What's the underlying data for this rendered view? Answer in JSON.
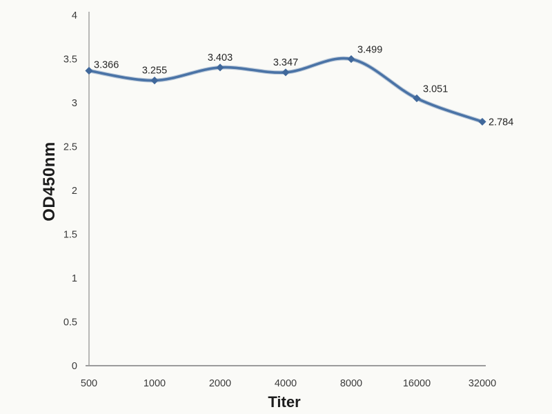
{
  "figure": {
    "background": "#fafaf7"
  },
  "chart_data": {
    "type": "line",
    "title": "",
    "xlabel": "Titer",
    "ylabel": "OD450nm",
    "categories": [
      "500",
      "1000",
      "2000",
      "4000",
      "8000",
      "16000",
      "32000"
    ],
    "values": [
      3.366,
      3.255,
      3.403,
      3.347,
      3.499,
      3.051,
      2.784
    ],
    "point_labels": [
      "3.366",
      "3.255",
      "3.403",
      "3.347",
      "3.499",
      "3.051",
      "2.784"
    ],
    "label_placements": [
      "right-up",
      "above",
      "above",
      "above",
      "above-right",
      "above-right",
      "right"
    ],
    "ylim": [
      0,
      4
    ],
    "yticks": [
      "0",
      "0.5",
      "1",
      "1.5",
      "2",
      "2.5",
      "3",
      "3.5",
      "4"
    ],
    "grid": false,
    "legend": "none",
    "marker": "diamond",
    "colors": {
      "line": "#4a73a6",
      "marker": "#40689b",
      "axis": "#9b9b9b",
      "tick_text": "#3a3a3a",
      "label_text": "#262626"
    }
  }
}
